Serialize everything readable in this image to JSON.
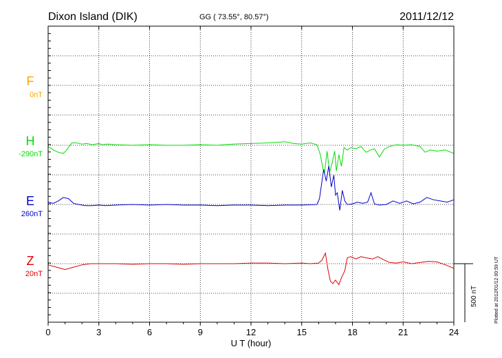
{
  "chart_data": {
    "type": "line",
    "title": "Dixon Island (DIK)",
    "subtitle": "GG ( 73.55°,  80.57°)",
    "date": "2011/12/12",
    "xlabel": "U T (hour)",
    "xlim": [
      0,
      24
    ],
    "x_ticks": [
      "0",
      "3",
      "6",
      "9",
      "12",
      "15",
      "18",
      "21",
      "24"
    ],
    "scale_label": "500 nT",
    "footer": "Plotted at 2012/01/12 00:59 UT",
    "grid": true,
    "colors": {
      "F": "#ffa500",
      "H": "#00dd00",
      "E": "#0000cc",
      "Z": "#dd0000"
    },
    "series": [
      {
        "name": "F",
        "offset_label": "0nT",
        "points": []
      },
      {
        "name": "H",
        "offset_label": "-290nT",
        "points": [
          [
            0,
            -10
          ],
          [
            0.3,
            -40
          ],
          [
            0.6,
            -60
          ],
          [
            0.9,
            -70
          ],
          [
            1.1,
            -40
          ],
          [
            1.4,
            20
          ],
          [
            1.7,
            20
          ],
          [
            2.0,
            10
          ],
          [
            2.3,
            15
          ],
          [
            2.6,
            5
          ],
          [
            3.0,
            15
          ],
          [
            3.2,
            5
          ],
          [
            3.5,
            10
          ],
          [
            4,
            5
          ],
          [
            5,
            0
          ],
          [
            6,
            5
          ],
          [
            7,
            0
          ],
          [
            8,
            0
          ],
          [
            9,
            5
          ],
          [
            10,
            0
          ],
          [
            11,
            10
          ],
          [
            12,
            15
          ],
          [
            13,
            20
          ],
          [
            13.5,
            25
          ],
          [
            14.0,
            30
          ],
          [
            14.5,
            15
          ],
          [
            15.0,
            10
          ],
          [
            15.5,
            20
          ],
          [
            15.9,
            5
          ],
          [
            16.1,
            -80
          ],
          [
            16.25,
            -200
          ],
          [
            16.35,
            -240
          ],
          [
            16.5,
            -50
          ],
          [
            16.65,
            -230
          ],
          [
            16.8,
            -150
          ],
          [
            16.95,
            -50
          ],
          [
            17.05,
            -220
          ],
          [
            17.2,
            -80
          ],
          [
            17.35,
            -180
          ],
          [
            17.5,
            -20
          ],
          [
            17.7,
            -40
          ],
          [
            17.9,
            -20
          ],
          [
            18.2,
            -30
          ],
          [
            18.5,
            -10
          ],
          [
            18.8,
            -60
          ],
          [
            19.1,
            -40
          ],
          [
            19.3,
            -30
          ],
          [
            19.6,
            -100
          ],
          [
            19.9,
            -30
          ],
          [
            20.2,
            -10
          ],
          [
            20.6,
            5
          ],
          [
            21.0,
            0
          ],
          [
            21.5,
            5
          ],
          [
            22.0,
            -10
          ],
          [
            22.3,
            -60
          ],
          [
            22.6,
            -40
          ],
          [
            23.0,
            -50
          ],
          [
            23.5,
            -40
          ],
          [
            24,
            -70
          ]
        ]
      },
      {
        "name": "E",
        "offset_label": "260nT",
        "points": [
          [
            0,
            20
          ],
          [
            0.3,
            10
          ],
          [
            0.6,
            30
          ],
          [
            0.9,
            60
          ],
          [
            1.2,
            50
          ],
          [
            1.5,
            10
          ],
          [
            1.8,
            0
          ],
          [
            2.2,
            -10
          ],
          [
            2.6,
            -10
          ],
          [
            3.0,
            -5
          ],
          [
            3.4,
            -10
          ],
          [
            4,
            -5
          ],
          [
            5,
            0
          ],
          [
            6,
            -5
          ],
          [
            7,
            0
          ],
          [
            8,
            -5
          ],
          [
            9,
            -5
          ],
          [
            10,
            -10
          ],
          [
            11,
            -5
          ],
          [
            12,
            -5
          ],
          [
            13,
            -10
          ],
          [
            14,
            -5
          ],
          [
            15,
            -5
          ],
          [
            15.9,
            0
          ],
          [
            16.05,
            50
          ],
          [
            16.15,
            150
          ],
          [
            16.3,
            300
          ],
          [
            16.45,
            200
          ],
          [
            16.6,
            330
          ],
          [
            16.75,
            150
          ],
          [
            16.9,
            250
          ],
          [
            17.0,
            80
          ],
          [
            17.1,
            100
          ],
          [
            17.25,
            -50
          ],
          [
            17.4,
            120
          ],
          [
            17.55,
            30
          ],
          [
            17.7,
            0
          ],
          [
            18.0,
            5
          ],
          [
            18.3,
            20
          ],
          [
            18.6,
            10
          ],
          [
            18.9,
            20
          ],
          [
            19.1,
            100
          ],
          [
            19.3,
            5
          ],
          [
            19.6,
            -5
          ],
          [
            20.0,
            0
          ],
          [
            20.4,
            30
          ],
          [
            20.8,
            10
          ],
          [
            21.2,
            30
          ],
          [
            21.6,
            5
          ],
          [
            22.0,
            20
          ],
          [
            22.4,
            60
          ],
          [
            22.8,
            40
          ],
          [
            23.2,
            30
          ],
          [
            23.6,
            20
          ],
          [
            24,
            40
          ]
        ]
      },
      {
        "name": "Z",
        "offset_label": "20nT",
        "points": [
          [
            0,
            -10
          ],
          [
            0.5,
            -30
          ],
          [
            1.0,
            -50
          ],
          [
            1.5,
            -30
          ],
          [
            2.0,
            -10
          ],
          [
            2.5,
            0
          ],
          [
            3,
            0
          ],
          [
            4,
            0
          ],
          [
            5,
            -5
          ],
          [
            6,
            0
          ],
          [
            7,
            0
          ],
          [
            8,
            -5
          ],
          [
            9,
            0
          ],
          [
            10,
            0
          ],
          [
            11,
            0
          ],
          [
            12,
            5
          ],
          [
            13,
            5
          ],
          [
            14,
            0
          ],
          [
            15,
            5
          ],
          [
            15.5,
            0
          ],
          [
            16.0,
            5
          ],
          [
            16.2,
            30
          ],
          [
            16.4,
            90
          ],
          [
            16.55,
            -50
          ],
          [
            16.7,
            -150
          ],
          [
            16.85,
            -170
          ],
          [
            17.0,
            -140
          ],
          [
            17.2,
            -180
          ],
          [
            17.35,
            -120
          ],
          [
            17.55,
            -60
          ],
          [
            17.7,
            50
          ],
          [
            17.9,
            60
          ],
          [
            18.2,
            40
          ],
          [
            18.5,
            60
          ],
          [
            18.8,
            50
          ],
          [
            19.2,
            40
          ],
          [
            19.5,
            60
          ],
          [
            19.9,
            30
          ],
          [
            20.2,
            10
          ],
          [
            20.6,
            5
          ],
          [
            21.0,
            15
          ],
          [
            21.5,
            0
          ],
          [
            22.0,
            10
          ],
          [
            22.5,
            20
          ],
          [
            23.0,
            15
          ],
          [
            23.5,
            -10
          ],
          [
            24,
            -40
          ]
        ]
      }
    ]
  }
}
